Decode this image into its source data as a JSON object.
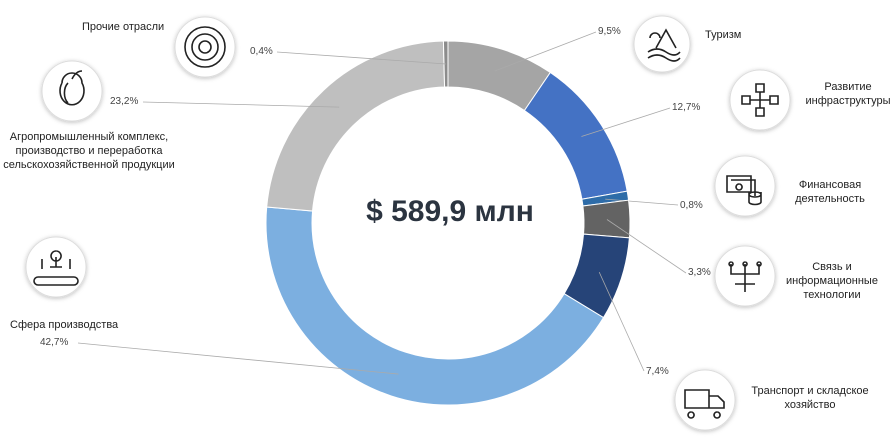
{
  "chart_data": {
    "type": "pie",
    "center_label": "$ 589,9 млн",
    "categories": [
      "Туризм",
      "Развитие инфраструктуры",
      "Финансовая деятельность",
      "Связь и информационные технологии",
      "Транспорт и складское хозяйство",
      "Сфера производства",
      "Агропромышленный комплекс, производство и переработка сельскохозяйственной продукции",
      "Прочие отрасли"
    ],
    "values": [
      9.5,
      12.7,
      0.8,
      3.3,
      7.4,
      42.7,
      23.2,
      0.4
    ],
    "value_labels": [
      "9,5%",
      "12,7%",
      "0,8%",
      "3,3%",
      "7,4%",
      "42,7%",
      "23,2%",
      "0,4%"
    ],
    "colors": [
      "#a5a5a5",
      "#4472c4",
      "#2e6ca8",
      "#636363",
      "#264478",
      "#7cafe0",
      "#bfbfbf",
      "#8c8c8c"
    ]
  }
}
